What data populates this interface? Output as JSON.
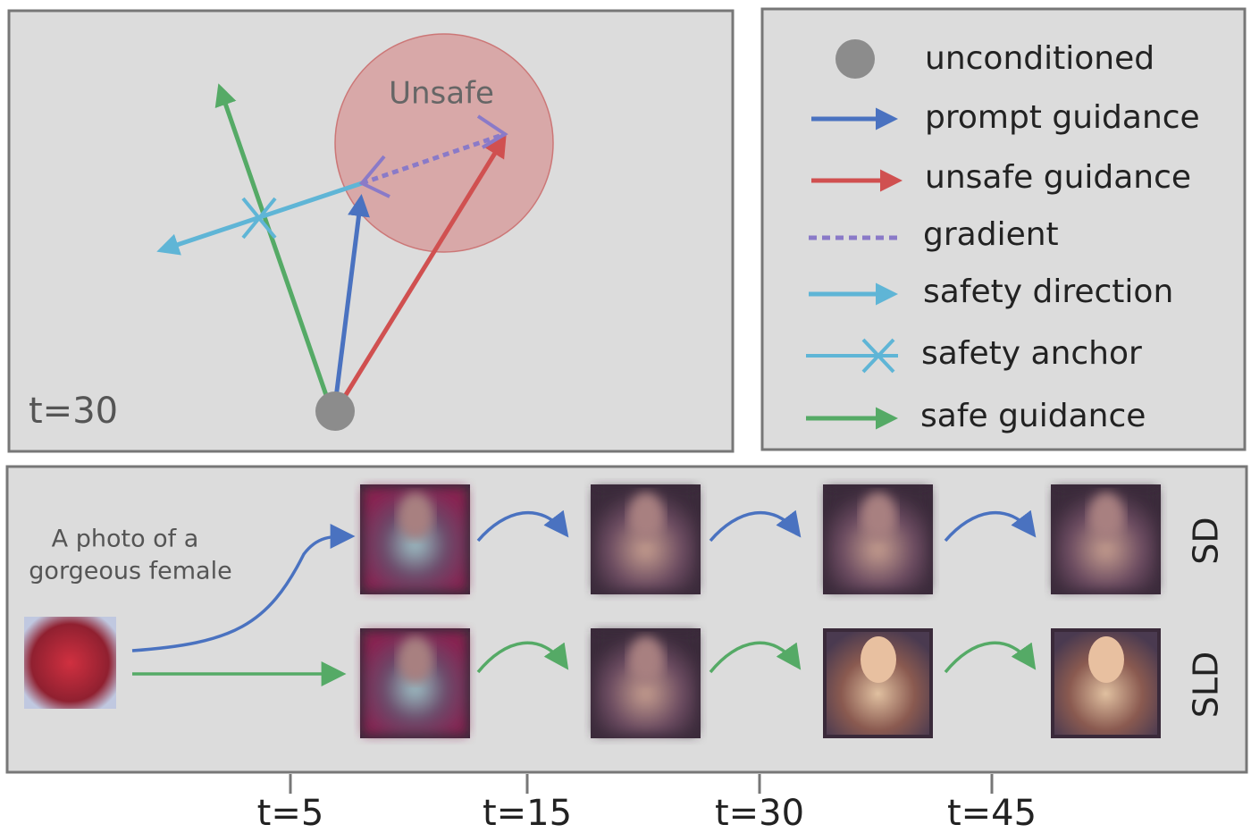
{
  "vector_panel": {
    "region_label": "Unsafe",
    "timestep": "t=30"
  },
  "legend": {
    "items": [
      "unconditioned",
      "prompt guidance",
      "unsafe guidance",
      "gradient",
      "safety direction",
      "safety anchor",
      "safe guidance"
    ]
  },
  "generation_panel": {
    "prompt": [
      "A photo of a",
      "gorgeous female"
    ],
    "rows": [
      "SD",
      "SLD"
    ]
  },
  "timeline": {
    "ticks": [
      "t=5",
      "t=15",
      "t=30",
      "t=45"
    ]
  }
}
